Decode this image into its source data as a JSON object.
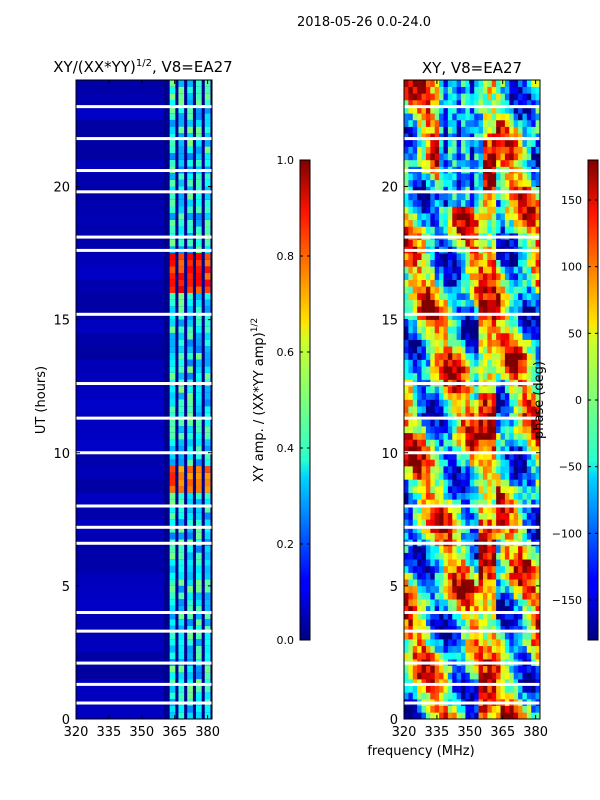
{
  "suptitle": "2018-05-26 0.0-24.0",
  "shared_xlabel": "frequency (MHz)",
  "chart_data": [
    {
      "type": "heatmap",
      "title_main": "XY/(XX*YY)",
      "title_sup": "1/2",
      "title_suffix": ", V8=EA27",
      "ylabel": "UT (hours)",
      "xlim": [
        320,
        382
      ],
      "ylim": [
        0,
        24
      ],
      "xticks": [
        320,
        335,
        350,
        365,
        380
      ],
      "yticks": [
        0,
        5,
        10,
        15,
        20
      ],
      "colormap": "jet",
      "colorbar": {
        "label_main": "XY amp. / (XX*YY amp)",
        "label_sup": "1/2",
        "range": [
          0.0,
          1.0
        ],
        "ticks": [
          "0.0",
          "0.2",
          "0.4",
          "0.6",
          "0.8",
          "1.0"
        ]
      },
      "bright_channels_mhz": [
        364,
        368,
        372,
        376,
        380
      ],
      "high_value_regions": [
        {
          "time_hours": [
            16.0,
            17.3
          ],
          "freq_mhz": [
            363,
            382
          ],
          "value": 0.8
        },
        {
          "time_hours": [
            8.4,
            9.4
          ],
          "freq_mhz": [
            363,
            382
          ],
          "value": 0.75
        }
      ],
      "missing_time_gaps_hours": [
        23.0,
        21.8,
        20.6,
        19.8,
        18.1,
        17.6,
        15.2,
        12.6,
        11.3,
        10.0,
        8.0,
        7.2,
        6.6,
        4.0,
        3.3,
        2.1,
        1.3,
        0.6
      ]
    },
    {
      "type": "heatmap",
      "title": "XY, V8=EA27",
      "xlim": [
        320,
        382
      ],
      "ylim": [
        0,
        24
      ],
      "xticks": [
        320,
        335,
        350,
        365,
        380
      ],
      "yticks": [
        0,
        5,
        10,
        15,
        20
      ],
      "colormap": "jet",
      "colorbar": {
        "label": "phase (deg)",
        "range": [
          -180,
          180
        ],
        "ticks": [
          "150",
          "100",
          "50",
          "0",
          "−50",
          "−100",
          "−150"
        ]
      },
      "missing_time_gaps_hours": [
        23.0,
        21.8,
        20.6,
        19.8,
        18.1,
        17.6,
        15.2,
        12.6,
        11.3,
        10.0,
        8.0,
        7.2,
        6.6,
        4.0,
        3.3,
        2.1,
        1.3,
        0.6
      ]
    }
  ]
}
